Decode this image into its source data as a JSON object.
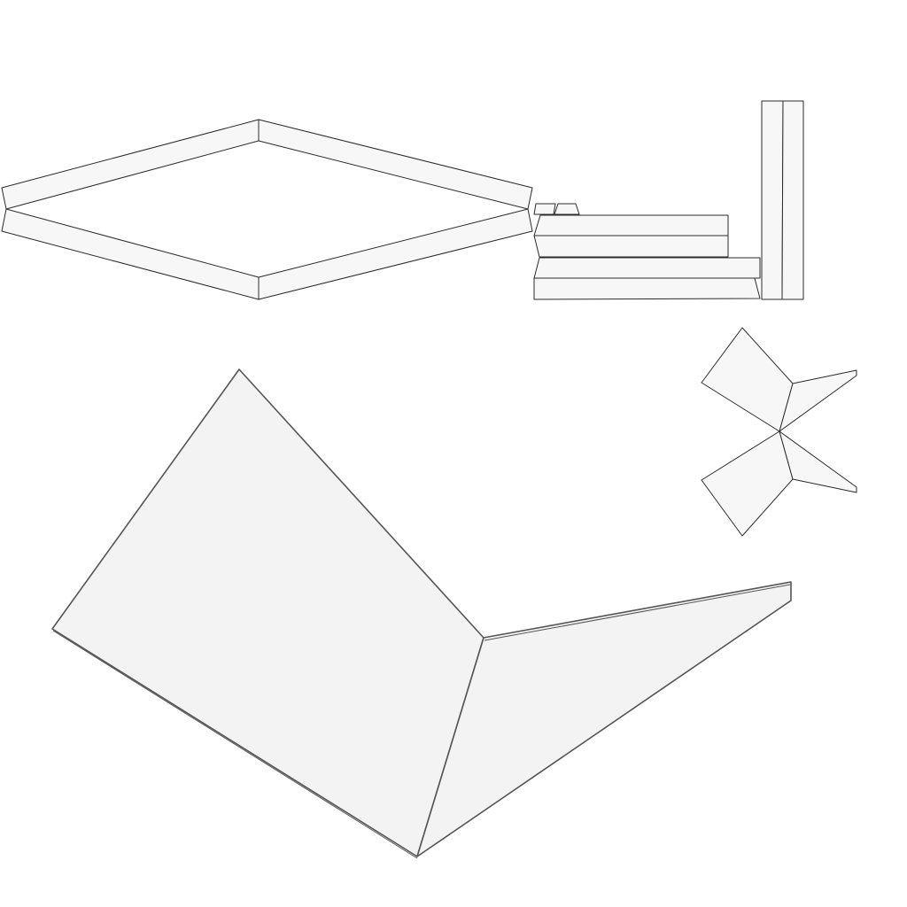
{
  "colors": {
    "background": "#ffffff",
    "face_fill": "#f7f7f7",
    "big_face_fill": "#f3f3f3",
    "edge_stroke": "#2b2b2b",
    "big_edge_stroke": "#555555"
  },
  "parts": [
    "diamond-frame",
    "small-tabs",
    "stacked-strips",
    "upright-post",
    "bowtie-fold",
    "large-folded-sheet"
  ]
}
